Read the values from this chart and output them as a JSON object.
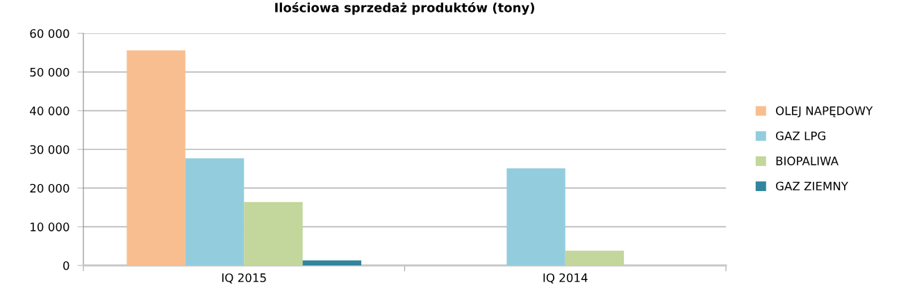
{
  "chart_data": {
    "type": "bar",
    "title": "Ilościowa sprzedaż produktów (tony)",
    "categories": [
      "IQ 2015",
      "IQ 2014"
    ],
    "series": [
      {
        "name": "OLEJ NAPĘDOWY",
        "color": "#f9be8f",
        "values": [
          55600,
          null
        ]
      },
      {
        "name": "GAZ LPG",
        "color": "#93cddd",
        "values": [
          27700,
          25100
        ]
      },
      {
        "name": "BIOPALIWA",
        "color": "#c3d69b",
        "values": [
          16400,
          3800
        ]
      },
      {
        "name": "GAZ ZIEMNY",
        "color": "#31859c",
        "values": [
          1300,
          null
        ]
      }
    ],
    "ylim": [
      0,
      60000
    ],
    "yticks": [
      {
        "value": 0,
        "label": "0"
      },
      {
        "value": 10000,
        "label": "10 000"
      },
      {
        "value": 20000,
        "label": "20 000"
      },
      {
        "value": 30000,
        "label": "30 000"
      },
      {
        "value": 40000,
        "label": "40 000"
      },
      {
        "value": 50000,
        "label": "50 000"
      },
      {
        "value": 60000,
        "label": "60 000"
      }
    ],
    "grid": "y",
    "legend": "right"
  }
}
